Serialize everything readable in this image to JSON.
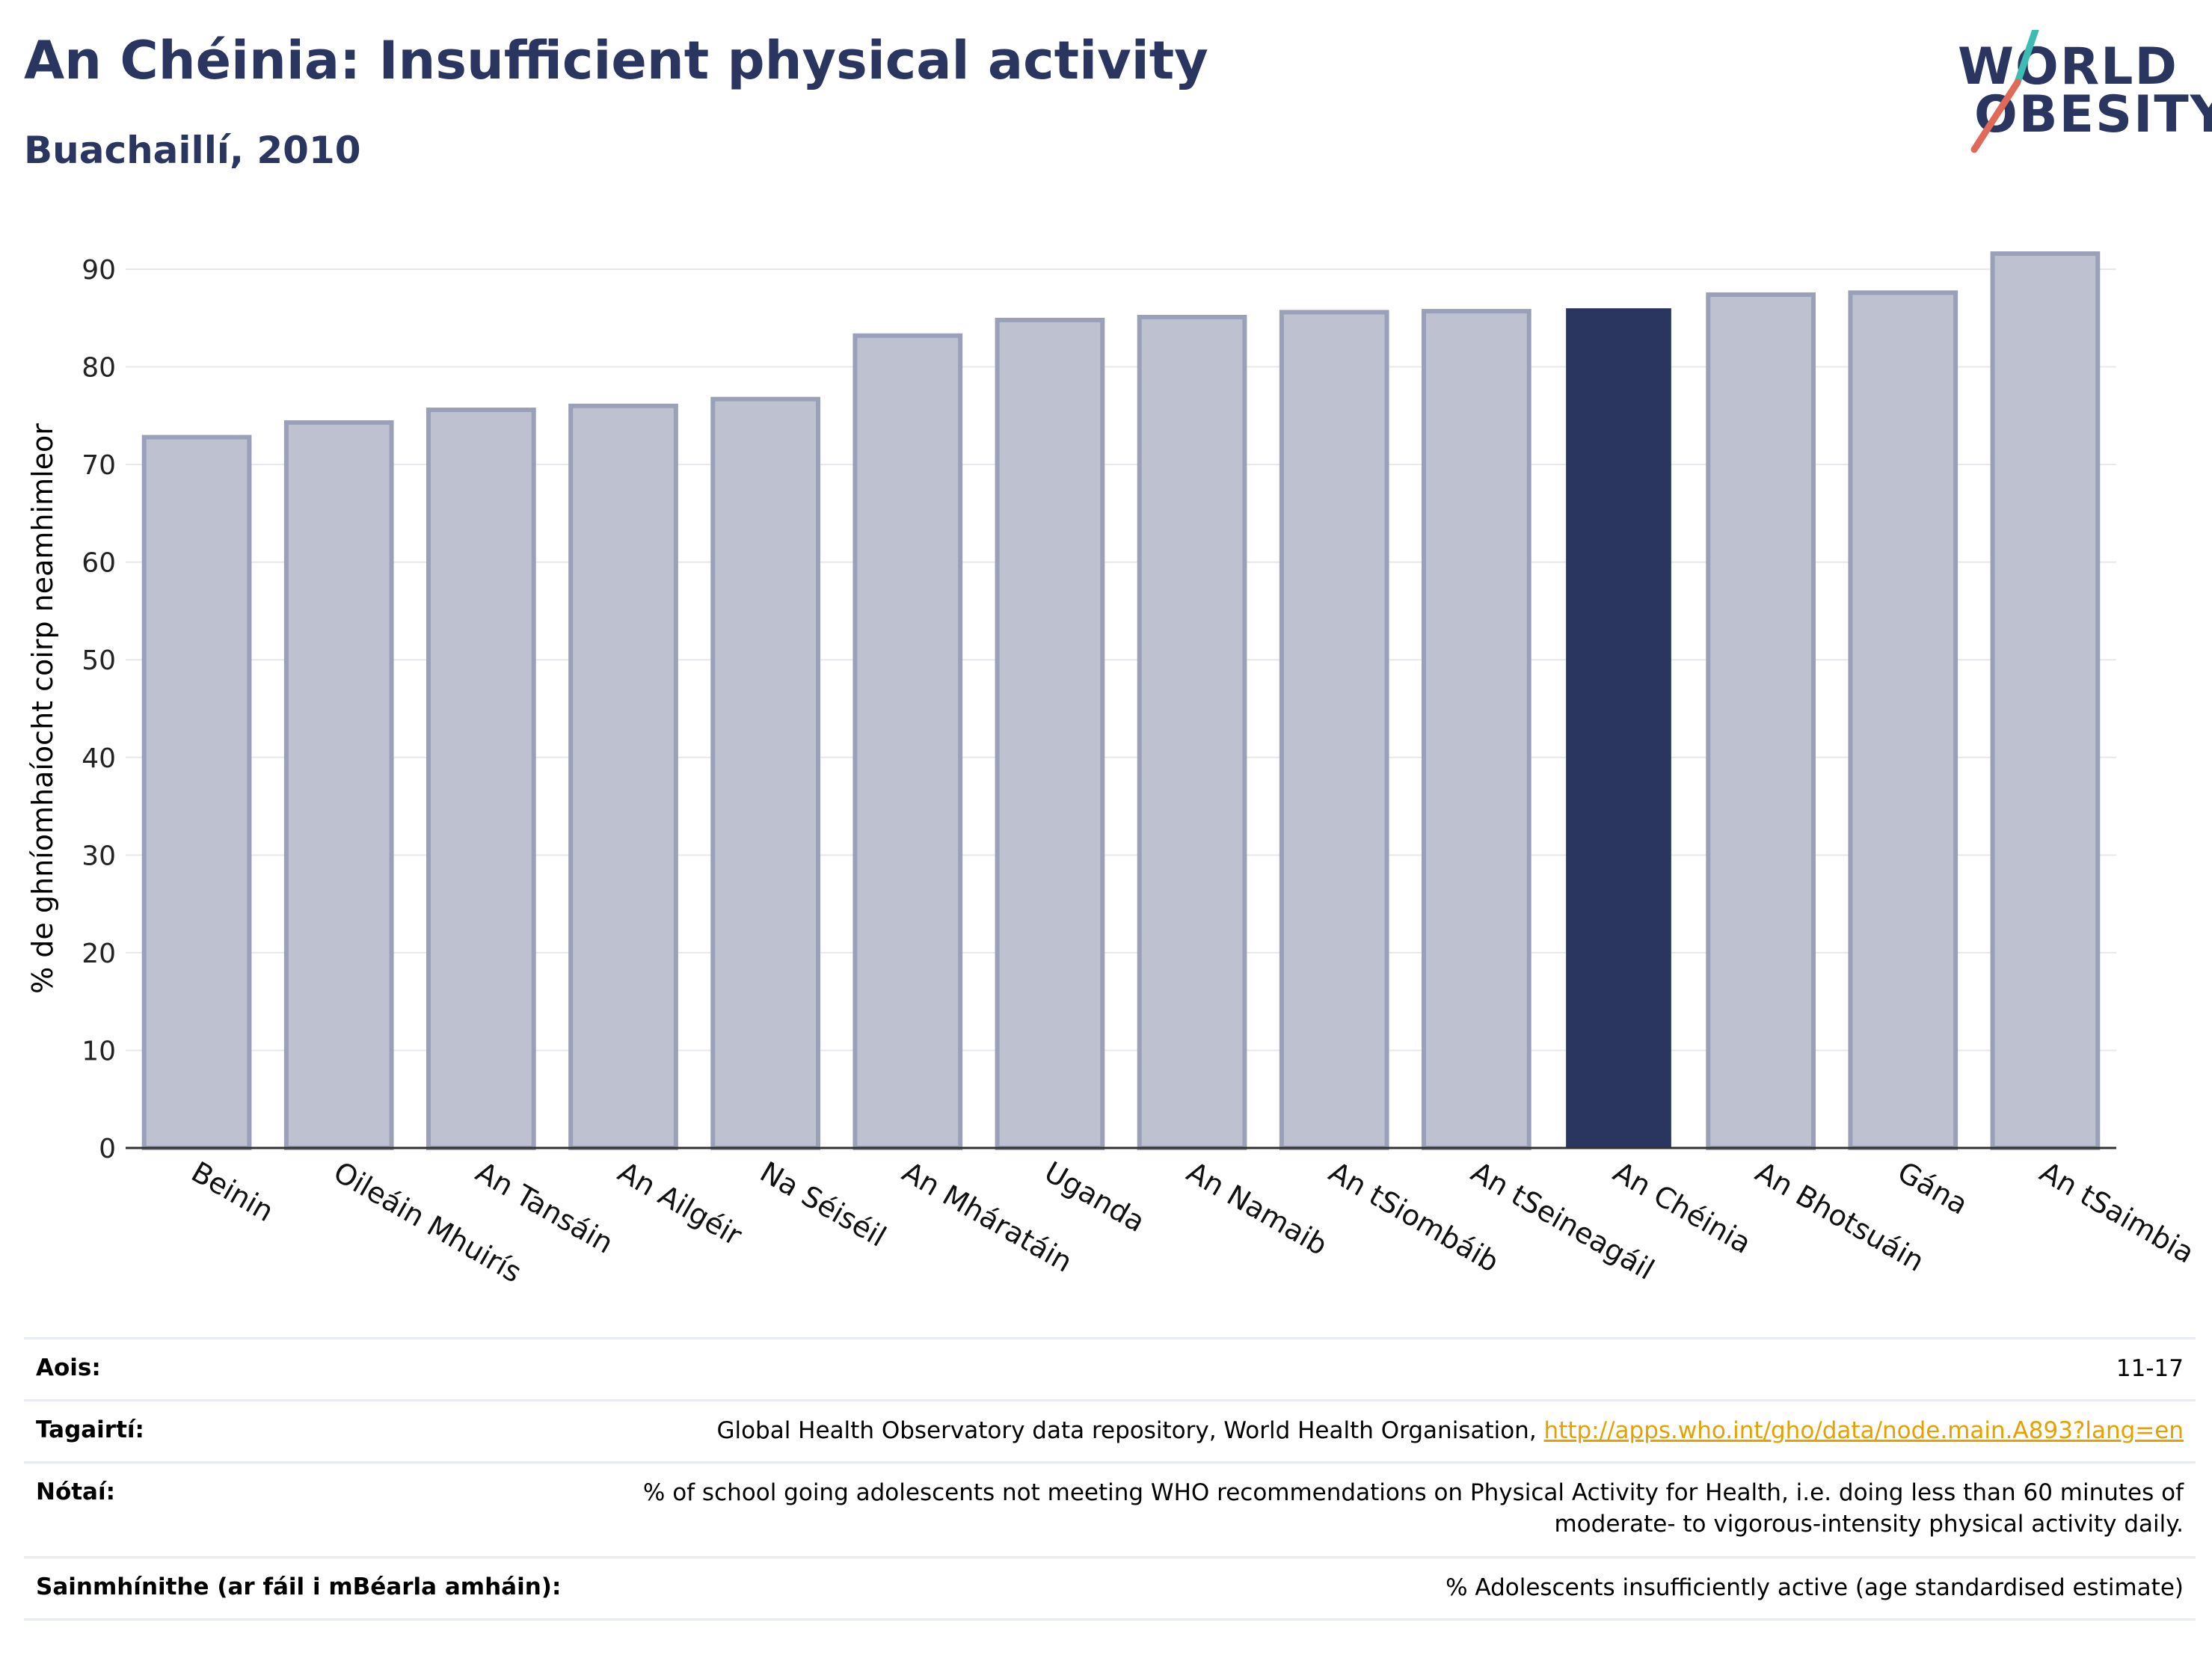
{
  "header": {
    "title": "An Chéinia: Insufficient physical activity",
    "subtitle": "Buachaillí, 2010"
  },
  "logo": {
    "line1": "WORLD",
    "line2": "OBESITY"
  },
  "chart_data": {
    "type": "bar",
    "ylabel": "% de ghníomhaíocht coirp neamhimleor",
    "ylim": [
      0,
      90
    ],
    "yticks": [
      0,
      10,
      20,
      30,
      40,
      50,
      60,
      70,
      80,
      90
    ],
    "grid": true,
    "categories": [
      "Beinin",
      "Oileáin Mhuirís",
      "An Tansáin",
      "An Ailgéir",
      "Na Séiséil",
      "An Mháratáin",
      "Uganda",
      "An Namaib",
      "An tSiombáib",
      "An tSeineagáil",
      "An Chéinia",
      "An Bhotsuáin",
      "Gána",
      "An tSaimbia"
    ],
    "values": [
      72.8,
      74.3,
      75.6,
      76.0,
      76.7,
      83.2,
      84.8,
      85.1,
      85.6,
      85.7,
      86.0,
      87.4,
      87.6,
      91.6
    ],
    "highlight": "An Chéinia",
    "colors": {
      "bar": "#bec2d0",
      "bar_border": "#9aa0b8",
      "highlight": "#2a3560"
    }
  },
  "info": {
    "age_label": "Aois:",
    "age_value": "11-17",
    "refs_label": "Tagairtí:",
    "refs_text": "Global Health Observatory data repository, World Health Organisation, ",
    "refs_link": "http://apps.who.int/gho/data/node.main.A893?lang=en",
    "notes_label": "Nótaí:",
    "notes_line1": "% of school going adolescents not meeting WHO recommendations on Physical Activity for Health, i.e. doing less than 60 minutes of",
    "notes_line2": "moderate- to vigorous-intensity physical activity daily.",
    "defs_label": "Sainmhínithe (ar fáil i mBéarla amháin):",
    "defs_value": "% Adolescents insufficiently active (age standardised estimate)"
  }
}
